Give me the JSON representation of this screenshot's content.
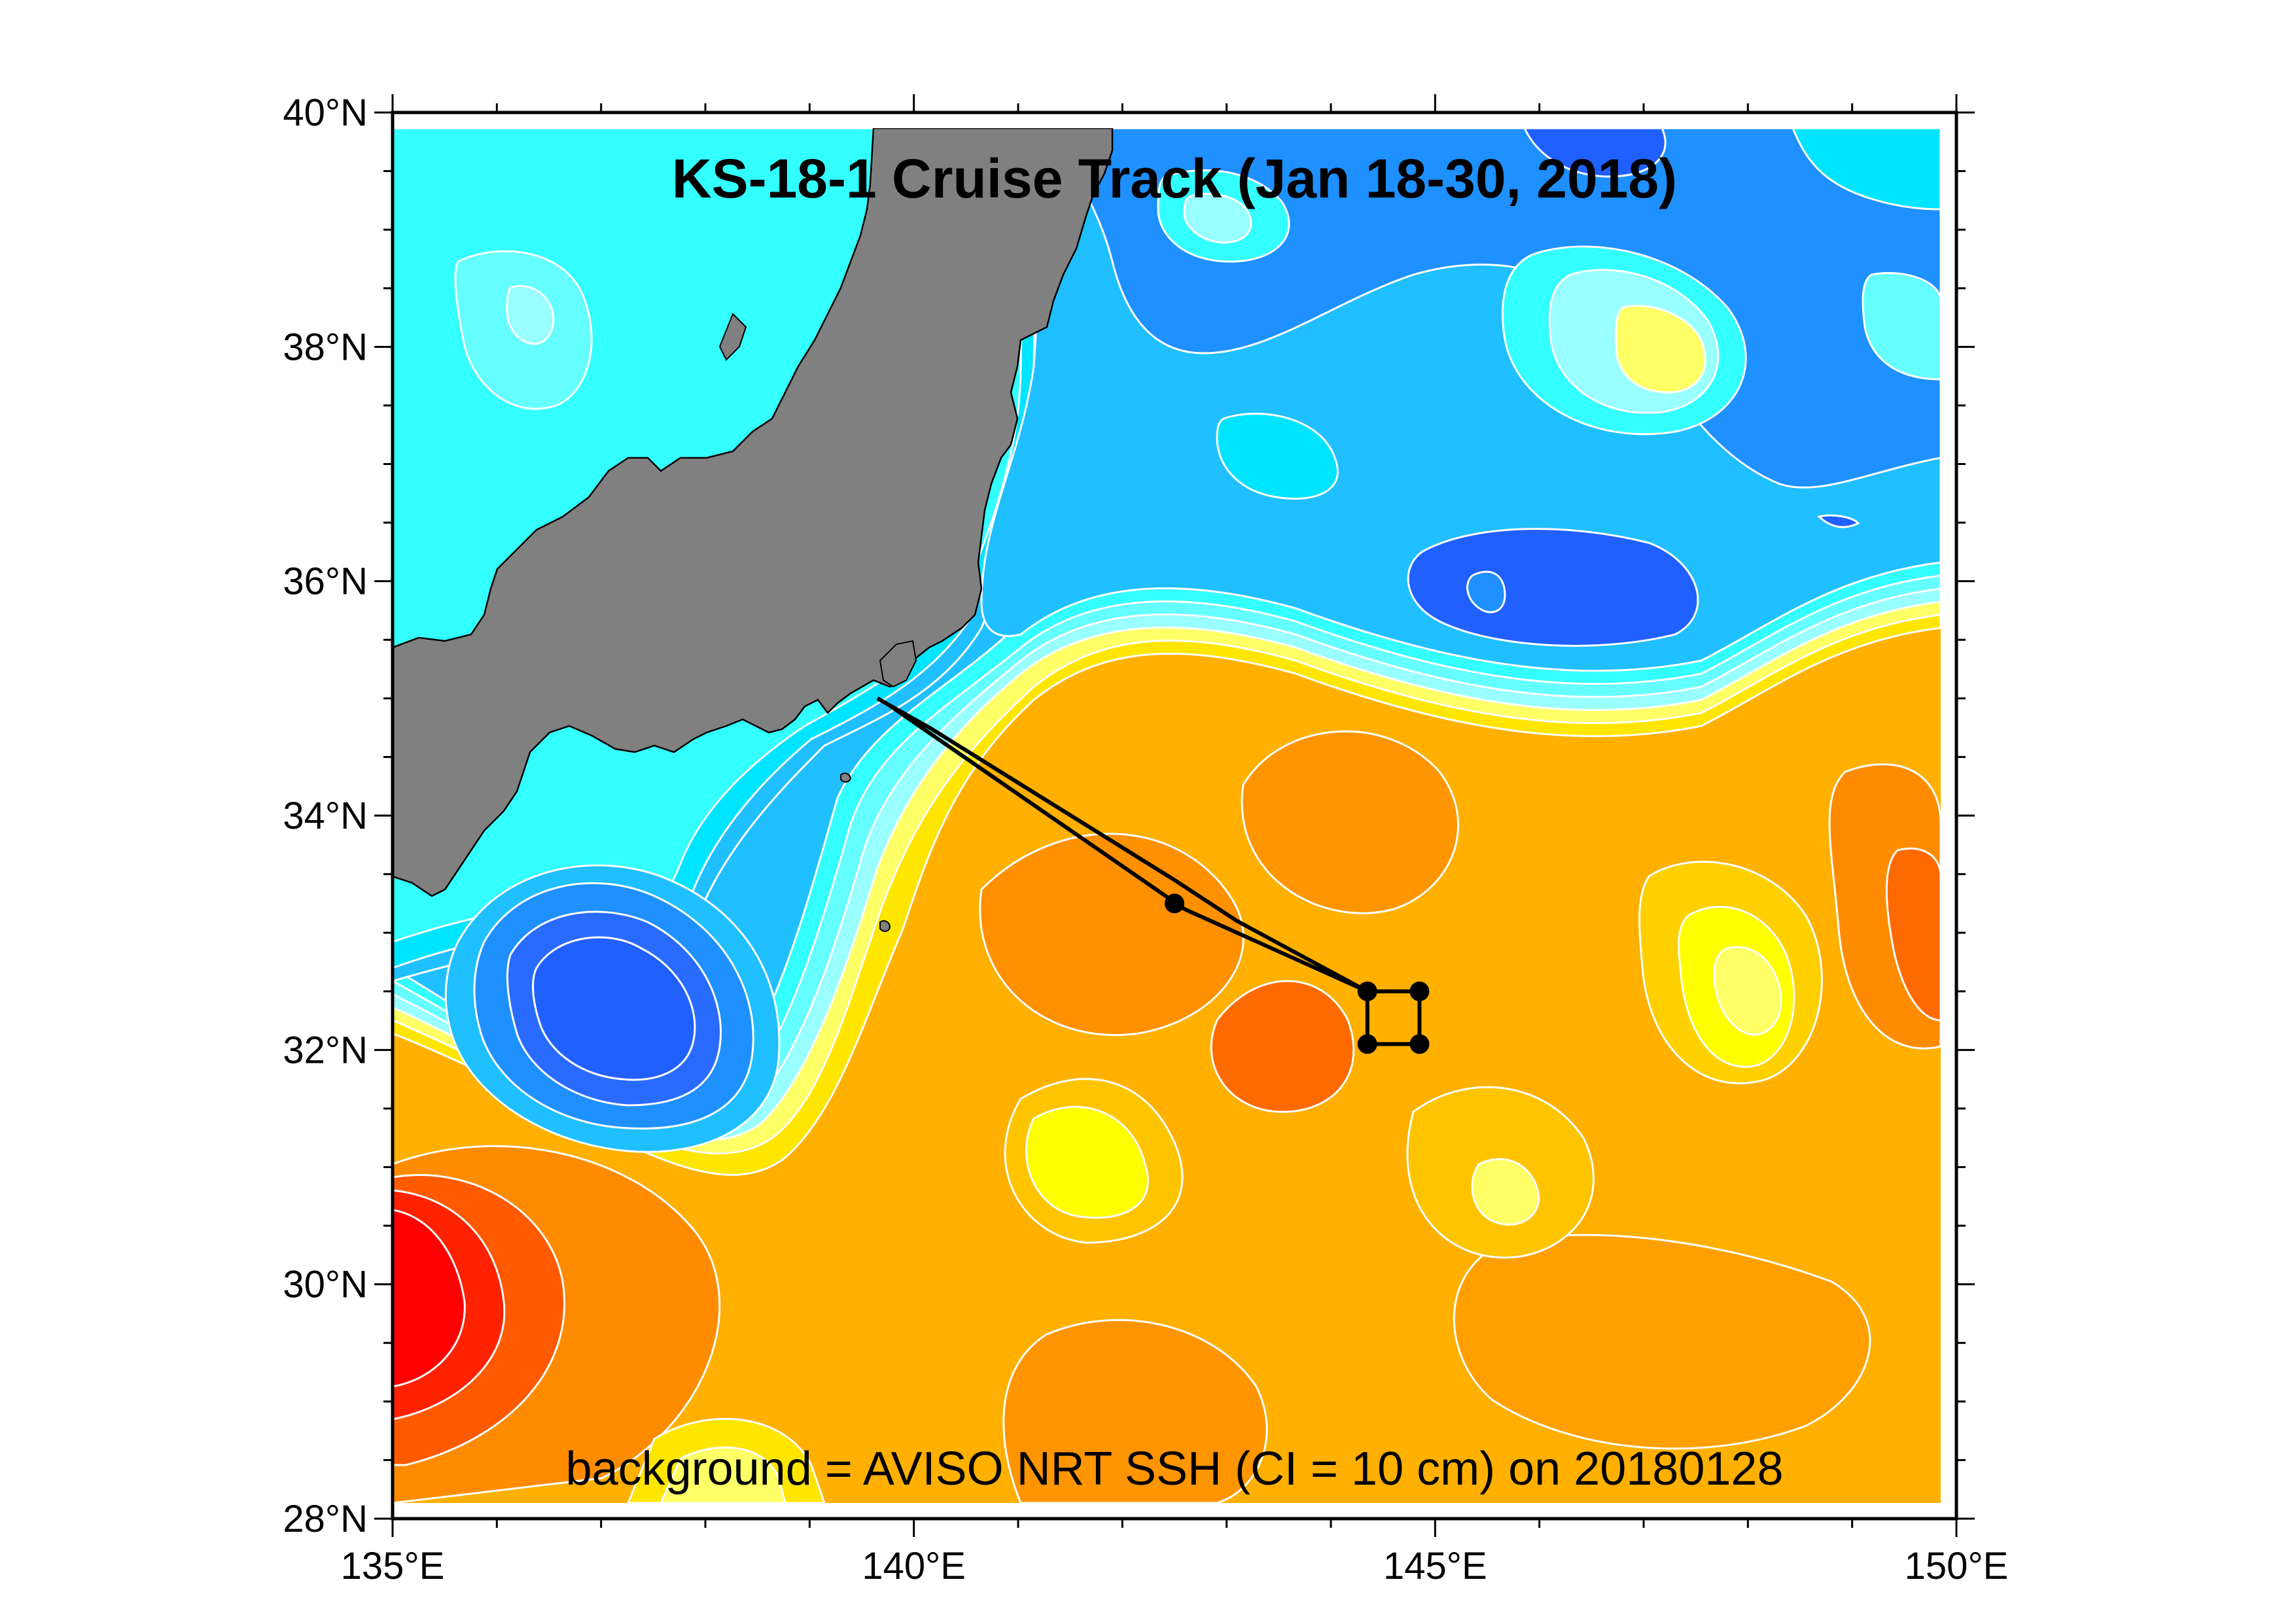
{
  "title": "KS-18-1 Cruise Track (Jan 18-30, 2018)",
  "caption": "background = AVISO NRT SSH (CI = 10 cm) on 20180128",
  "axes": {
    "lon_range": [
      135,
      150
    ],
    "lat_range": [
      28,
      40
    ],
    "x_ticks": [
      {
        "value": 135,
        "label": "135°E"
      },
      {
        "value": 140,
        "label": "140°E"
      },
      {
        "value": 145,
        "label": "145°E"
      },
      {
        "value": 150,
        "label": "150°E"
      }
    ],
    "y_ticks": [
      {
        "value": 28,
        "label": "28°N"
      },
      {
        "value": 30,
        "label": "30°N"
      },
      {
        "value": 32,
        "label": "32°N"
      },
      {
        "value": 34,
        "label": "34°N"
      },
      {
        "value": 36,
        "label": "36°N"
      },
      {
        "value": 38,
        "label": "38°N"
      },
      {
        "value": 40,
        "label": "40°N"
      }
    ]
  },
  "colors": {
    "land": "#808080",
    "contour_line": "#ffffff",
    "track": "#000000",
    "ssh_levels": [
      "#2060ff",
      "#1e90ff",
      "#20bfff",
      "#00e5ff",
      "#33ffff",
      "#99ffff",
      "#ffff66",
      "#ffe600",
      "#ffc400",
      "#ffa500",
      "#ff8c00",
      "#ff6a00",
      "#ff3300",
      "#ff0000"
    ]
  },
  "cruise_track": {
    "path": [
      [
        139.65,
        35.0
      ],
      [
        140.15,
        34.75
      ],
      [
        142.5,
        33.45
      ],
      [
        143.1,
        33.1
      ],
      [
        144.35,
        32.5
      ],
      [
        144.85,
        32.5
      ],
      [
        144.85,
        32.05
      ],
      [
        144.35,
        32.05
      ],
      [
        144.35,
        32.5
      ],
      [
        142.6,
        33.2
      ],
      [
        139.75,
        34.95
      ],
      [
        139.65,
        35.0
      ]
    ],
    "stations": [
      [
        142.5,
        33.25
      ],
      [
        144.35,
        32.5
      ],
      [
        144.85,
        32.5
      ],
      [
        144.35,
        32.05
      ],
      [
        144.85,
        32.05
      ]
    ]
  }
}
